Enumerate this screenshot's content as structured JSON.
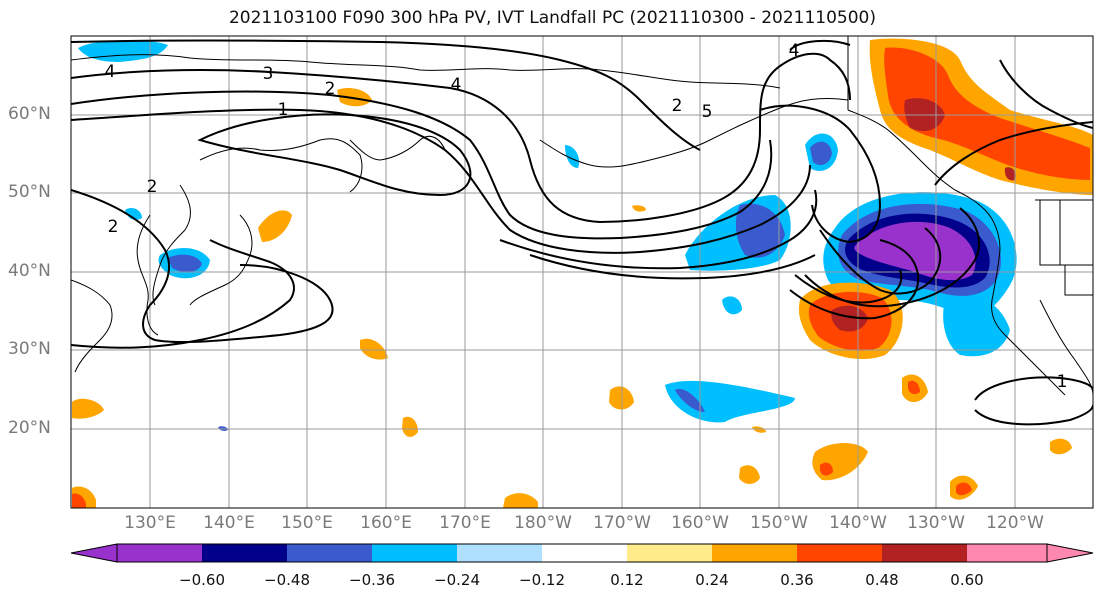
{
  "title": "2021103100 F090 300 hPa PV, IVT Landfall PC (2021110300 - 2021110500)",
  "lat_labels": [
    "60°N",
    "50°N",
    "40°N",
    "30°N",
    "20°N"
  ],
  "lon_labels": [
    "130°E",
    "140°E",
    "150°E",
    "160°E",
    "170°E",
    "180°W",
    "170°W",
    "160°W",
    "150°W",
    "140°W",
    "130°W",
    "120°W"
  ],
  "contour_labels": [
    "4",
    "3",
    "2",
    "1",
    "2",
    "4",
    "4",
    "5",
    "2",
    "2",
    "1"
  ],
  "colorbar": {
    "colors": [
      "#9932cc",
      "#00008b",
      "#3a5bcd",
      "#00bfff",
      "#b0e0ff",
      "#ffffff",
      "#ffeb8a",
      "#ffa500",
      "#ff4500",
      "#b22222",
      "#ff88b0"
    ],
    "ticks": [
      "−0.60",
      "−0.48",
      "−0.36",
      "−0.24",
      "−0.12",
      "0.12",
      "0.24",
      "0.36",
      "0.48",
      "0.60"
    ]
  }
}
